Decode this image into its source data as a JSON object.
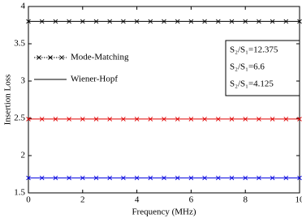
{
  "chart_data": {
    "type": "line",
    "xlabel": "Frequency (MHz)",
    "ylabel": "Insertion  Loss",
    "xlim": [
      0,
      10
    ],
    "xticks": [
      0,
      2,
      4,
      6,
      8,
      10
    ],
    "ylim": [
      1.5,
      4
    ],
    "yticks": [
      1.5,
      2,
      2.5,
      3,
      3.5,
      4
    ],
    "legend": [
      {
        "name": "Mode-Matching",
        "style": "dotted-x"
      },
      {
        "name": "Wiener-Hopf",
        "style": "solid"
      }
    ],
    "legend_position": "upper left",
    "annotation": [
      "S₂/S₁=12.375",
      "S₂/S₁=6.6",
      "S₂/S₁=4.125"
    ],
    "x": [
      0,
      0.5,
      1,
      1.5,
      2,
      2.5,
      3,
      3.5,
      4,
      4.5,
      5,
      5.5,
      6,
      6.5,
      7,
      7.5,
      8,
      8.5,
      9,
      9.5,
      10
    ],
    "series": [
      {
        "color": "#000000",
        "values": [
          3.8,
          3.8,
          3.8,
          3.8,
          3.8,
          3.8,
          3.8,
          3.8,
          3.8,
          3.8,
          3.8,
          3.8,
          3.8,
          3.8,
          3.8,
          3.8,
          3.8,
          3.8,
          3.8,
          3.8,
          3.8
        ]
      },
      {
        "color": "#e00000",
        "values": [
          2.49,
          2.49,
          2.49,
          2.49,
          2.49,
          2.49,
          2.49,
          2.49,
          2.49,
          2.49,
          2.49,
          2.49,
          2.49,
          2.49,
          2.49,
          2.49,
          2.49,
          2.49,
          2.49,
          2.49,
          2.49
        ]
      },
      {
        "color": "#0000e0",
        "values": [
          1.7,
          1.7,
          1.7,
          1.7,
          1.7,
          1.7,
          1.7,
          1.7,
          1.7,
          1.7,
          1.7,
          1.7,
          1.7,
          1.7,
          1.7,
          1.7,
          1.7,
          1.7,
          1.7,
          1.7,
          1.7
        ]
      }
    ]
  }
}
